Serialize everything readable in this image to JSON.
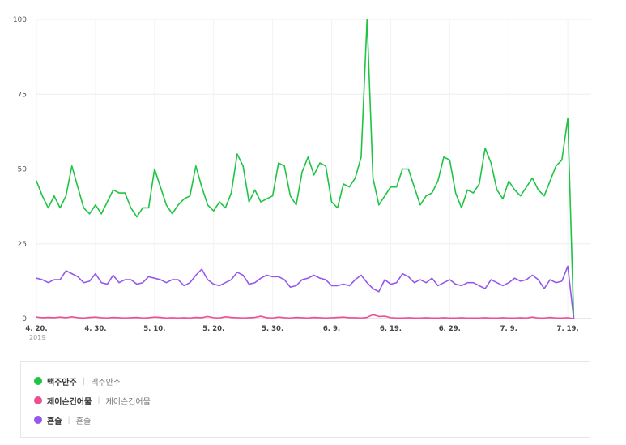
{
  "chart_data": {
    "type": "line",
    "title": "",
    "xlabel": "",
    "ylabel": "",
    "ylim": [
      0,
      100
    ],
    "yticks": [
      0,
      25,
      50,
      75,
      100
    ],
    "grid": true,
    "legend_position": "bottom",
    "x_start": "2019-04-20",
    "x_end": "2019-07-22",
    "x_tick_labels": [
      {
        "date": "2019-04-20",
        "label": "4. 20."
      },
      {
        "date": "2019-04-30",
        "label": "4. 30."
      },
      {
        "date": "2019-05-10",
        "label": "5. 10."
      },
      {
        "date": "2019-05-20",
        "label": "5. 20."
      },
      {
        "date": "2019-05-30",
        "label": "5. 30."
      },
      {
        "date": "2019-06-09",
        "label": "6. 9."
      },
      {
        "date": "2019-06-19",
        "label": "6. 19."
      },
      {
        "date": "2019-06-29",
        "label": "6. 29."
      },
      {
        "date": "2019-07-09",
        "label": "7. 9."
      },
      {
        "date": "2019-07-19",
        "label": "7. 19."
      }
    ],
    "year_label": "2019",
    "series": [
      {
        "name": "맥주안주",
        "description": "맥주안주",
        "color": "#1ec443",
        "values": [
          46,
          41,
          37,
          41,
          37,
          41,
          51,
          44,
          37,
          35,
          38,
          35,
          39,
          43,
          42,
          42,
          37,
          34,
          37,
          37,
          50,
          44,
          38,
          35,
          38,
          40,
          41,
          51,
          44,
          38,
          36,
          39,
          37,
          42,
          55,
          51,
          39,
          43,
          39,
          40,
          41,
          52,
          51,
          41,
          38,
          49,
          54,
          48,
          52,
          51,
          39,
          37,
          45,
          44,
          47,
          54,
          100,
          47,
          38,
          41,
          44,
          44,
          50,
          50,
          44,
          38,
          41,
          42,
          46,
          54,
          53,
          42,
          37,
          43,
          42,
          45,
          57,
          52,
          43,
          40,
          46,
          43,
          41,
          44,
          47,
          43,
          41,
          46,
          51,
          53,
          67,
          0
        ]
      },
      {
        "name": "제이슨건어물",
        "description": "제이슨건어물",
        "color": "#ee4f93",
        "values": [
          0.5,
          0.3,
          0.4,
          0.3,
          0.5,
          0.3,
          0.6,
          0.3,
          0.2,
          0.4,
          0.5,
          0.3,
          0.2,
          0.4,
          0.3,
          0.2,
          0.3,
          0.4,
          0.2,
          0.3,
          0.5,
          0.4,
          0.2,
          0.3,
          0.2,
          0.3,
          0.2,
          0.4,
          0.3,
          0.7,
          0.3,
          0.2,
          0.6,
          0.4,
          0.3,
          0.2,
          0.3,
          0.4,
          0.8,
          0.3,
          0.2,
          0.5,
          0.3,
          0.2,
          0.4,
          0.3,
          0.2,
          0.4,
          0.3,
          0.2,
          0.3,
          0.4,
          0.5,
          0.3,
          0.3,
          0.2,
          0.4,
          1.3,
          0.7,
          0.8,
          0.3,
          0.2,
          0.2,
          0.3,
          0.2,
          0.2,
          0.3,
          0.2,
          0.2,
          0.3,
          0.2,
          0.2,
          0.3,
          0.2,
          0.2,
          0.2,
          0.3,
          0.2,
          0.2,
          0.3,
          0.2,
          0.2,
          0.3,
          0.2,
          0.5,
          0.2,
          0.2,
          0.4,
          0.2,
          0.2,
          0.3,
          0
        ]
      },
      {
        "name": "혼술",
        "description": "혼술",
        "color": "#9657ec",
        "values": [
          13.5,
          13,
          12,
          13,
          13,
          16,
          15,
          14,
          12,
          12.5,
          15,
          12,
          11.5,
          14.5,
          12,
          13,
          13,
          11.5,
          12,
          14,
          13.5,
          13,
          12,
          13,
          13,
          11,
          12,
          14.5,
          16.5,
          13,
          11.5,
          11,
          12,
          13,
          15.5,
          14.5,
          11.5,
          12,
          13.5,
          14.5,
          14,
          14,
          13,
          10.5,
          11,
          13,
          13.5,
          14.5,
          13.5,
          13,
          11,
          11,
          11.5,
          11,
          13,
          14.5,
          12,
          10,
          9,
          13,
          11.5,
          12,
          15,
          14,
          12,
          13,
          12,
          13.5,
          11,
          12,
          13,
          11.5,
          11,
          12,
          12,
          11,
          10,
          13,
          12,
          11,
          12,
          13.5,
          12.5,
          13,
          14.5,
          13,
          10,
          13,
          12,
          12.5,
          17.5,
          0
        ]
      }
    ]
  }
}
